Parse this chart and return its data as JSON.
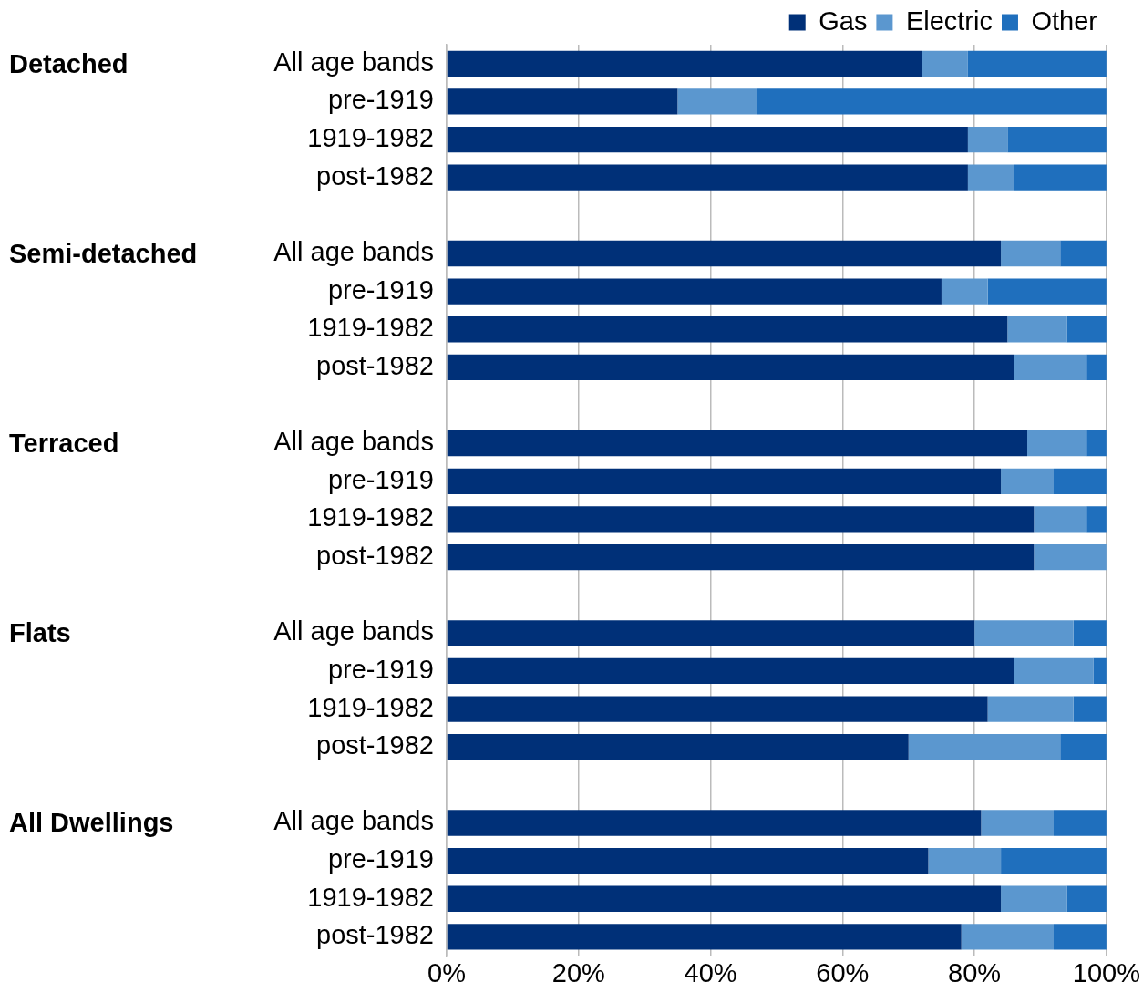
{
  "chart_data": {
    "type": "bar",
    "orientation": "horizontal",
    "stacked": true,
    "categories": [
      "All age bands",
      "pre-1919",
      "1919-1982",
      "post-1982",
      null,
      "All age bands",
      "pre-1919",
      "1919-1982",
      "post-1982",
      null,
      "All age bands",
      "pre-1919",
      "1919-1982",
      "post-1982",
      null,
      "All age bands",
      "pre-1919",
      "1919-1982",
      "post-1982",
      null,
      "All age bands",
      "pre-1919",
      "1919-1982",
      "post-1982"
    ],
    "series": [
      {
        "name": "Gas",
        "color": "#003078",
        "values": [
          72,
          35,
          79,
          79,
          null,
          84,
          75,
          85,
          86,
          null,
          88,
          84,
          89,
          89,
          null,
          80,
          86,
          82,
          70,
          null,
          81,
          73,
          84,
          78
        ]
      },
      {
        "name": "Electric",
        "color": "#5b97cf",
        "values": [
          7,
          12,
          6,
          7,
          null,
          9,
          7,
          9,
          11,
          null,
          9,
          8,
          8,
          11,
          null,
          15,
          12,
          13,
          23,
          null,
          11,
          11,
          10,
          14
        ]
      },
      {
        "name": "Other",
        "color": "#1f6fbd",
        "values": [
          21,
          53,
          15,
          14,
          null,
          7,
          18,
          6,
          3,
          null,
          3,
          8,
          3,
          0,
          null,
          5,
          2,
          5,
          7,
          null,
          8,
          16,
          6,
          8
        ]
      }
    ],
    "annotations": [
      "Detached",
      "Semi-detached",
      "Terraced",
      "Flats",
      "All Dwellings"
    ],
    "xlim": [
      0,
      100
    ],
    "xticks": [
      {
        "value": 0,
        "label": "0%"
      },
      {
        "value": 20,
        "label": "20%"
      },
      {
        "value": 40,
        "label": "40%"
      },
      {
        "value": 60,
        "label": "60%"
      },
      {
        "value": 80,
        "label": "80%"
      },
      {
        "value": 100,
        "label": "100%"
      }
    ],
    "grid": "x",
    "legend": "top"
  }
}
